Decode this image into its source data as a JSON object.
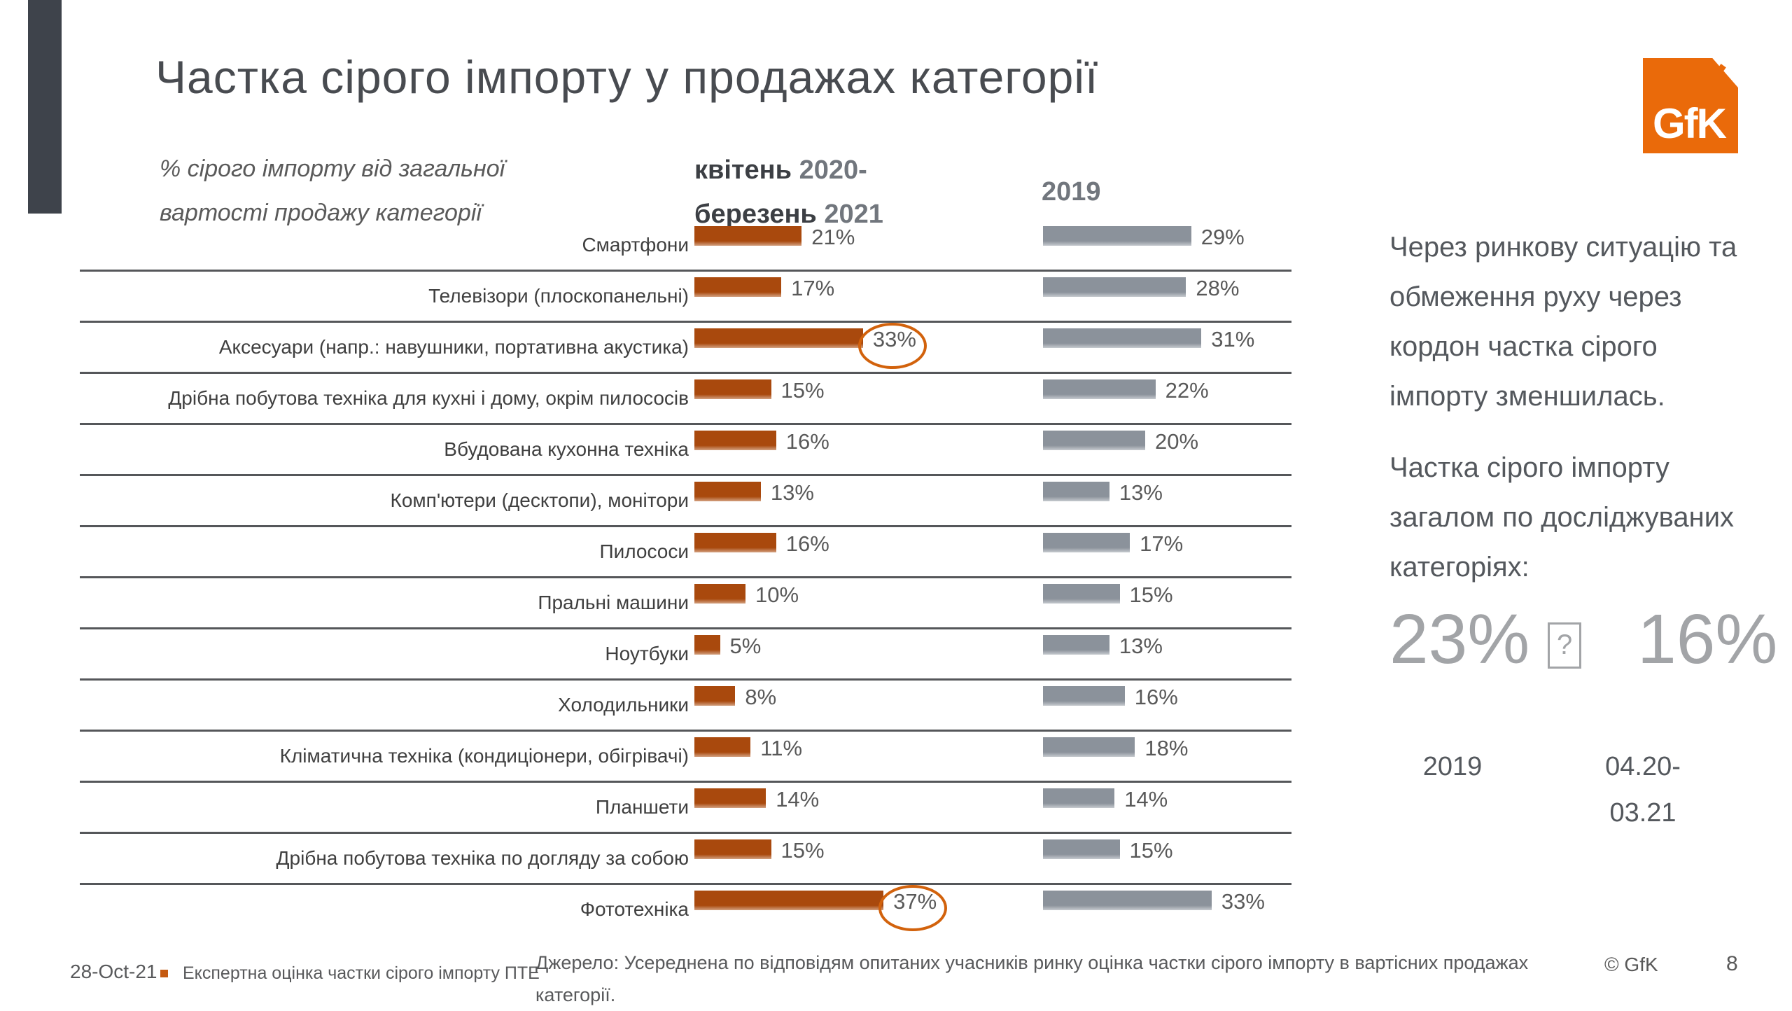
{
  "slide": {
    "title": "Частка сірого імпорту у продажах категорії",
    "subtitle": "% сірого імпорту від загальної\nвартості продажу категорії",
    "logo_text": "GfK",
    "date": "28-Oct-21",
    "footnote": "Експертна оцінка частки сірого імпорту ПТЕ",
    "source": "Джерело: Усереднена по відповідям опитаних учасників ринку оцінка частки сірого імпорту в вартісних продажах\nкатегорії.",
    "copyright": "© GfK",
    "page_number": "8"
  },
  "columns": {
    "col1_line1_word": "квітень",
    "col1_line1_year": "2020-",
    "col1_line2_word": "березень",
    "col1_line2_year": "2021",
    "col2_year": "2019"
  },
  "chart_data": {
    "type": "bar",
    "orientation": "horizontal",
    "title": "Частка сірого імпорту у продажах категорії",
    "xlabel": "% сірого імпорту від загальної вартості продажу категорії",
    "value_suffix": "%",
    "xlim": [
      0,
      40
    ],
    "grid": "horizontal separators between category rows",
    "legend_position": "column headers above each bar group",
    "categories": [
      "Смартфони",
      "Телевізори (плоскопанельні)",
      "Аксесуари (напр.: навушники, портативна акустика)",
      "Дрібна побутова техніка для кухні і дому, окрім пилососів",
      "Вбудована кухонна техніка",
      "Комп'ютери (десктопи), монітори",
      "Пилососи",
      "Пральні машини",
      "Ноутбуки",
      "Холодильники",
      "Кліматична техніка (кондиціонери, обігрівачі)",
      "Планшети",
      "Дрібна побутова техніка по догляду за собою",
      "Фототехніка"
    ],
    "series": [
      {
        "name": "квітень 2020-березень 2021",
        "color": "#A9490D",
        "values": [
          21,
          17,
          33,
          15,
          16,
          13,
          16,
          10,
          5,
          8,
          11,
          14,
          15,
          37
        ]
      },
      {
        "name": "2019",
        "color": "#8B929B",
        "values": [
          29,
          28,
          31,
          22,
          20,
          13,
          17,
          15,
          13,
          16,
          18,
          14,
          15,
          33
        ]
      }
    ],
    "circled_rows": [
      2,
      13
    ],
    "annotation_circle_color": "#D2620C"
  },
  "sidebar": {
    "paragraph1": "Через ринкову ситуацію та\nобмеження руху через\nкордон частка сірого\nімпорту зменшилась.",
    "paragraph2": "Частка сірого імпорту\nзагалом по досліджуваних\nкатегоріях:",
    "value_2019": "23%",
    "arrow_glyph": "?",
    "value_2021": "16%",
    "label_2019": "2019",
    "label_2021": "04.20-\n03.21",
    "big_value_color": "#A2A4A7"
  }
}
